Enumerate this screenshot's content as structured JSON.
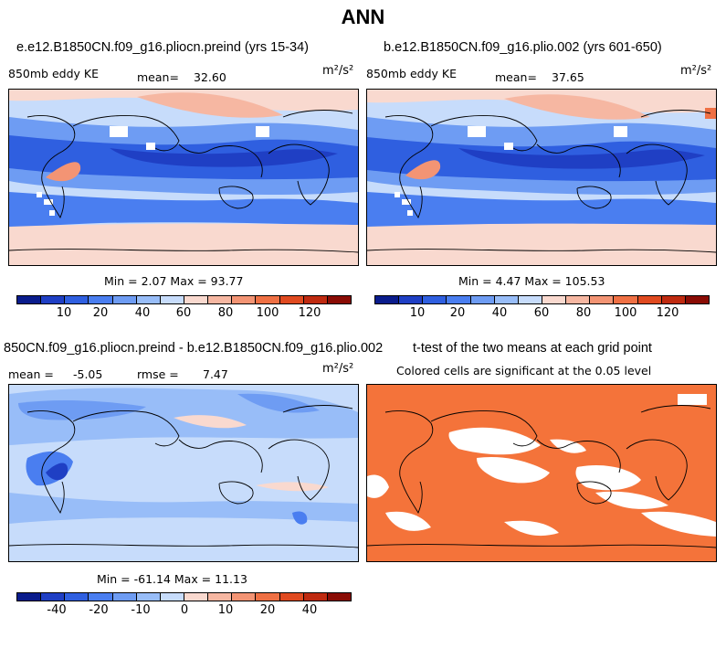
{
  "title": "ANN",
  "panels": [
    {
      "title": "e.e12.B1850CN.f09_g16.pliocn.preind (yrs 15-34)",
      "variable": "850mb eddy KE",
      "mean_label": "mean=",
      "mean_value": "32.60",
      "units": "m²/s²",
      "minmax_text": "Min =   2.07 Max =  93.77",
      "colorbar": {
        "colors": [
          "#0a1c8c",
          "#1f3fc4",
          "#2f5fe0",
          "#4a7ef0",
          "#6e9cf3",
          "#98bdf8",
          "#c7dcfb",
          "#f9d9cf",
          "#f6b7a2",
          "#f39474",
          "#ef7044",
          "#e04a20",
          "#bf2a10",
          "#8a0c05"
        ],
        "ticks": [
          "10",
          "20",
          "40",
          "60",
          "80",
          "100",
          "120"
        ]
      }
    },
    {
      "title": "b.e12.B1850CN.f09_g16.plio.002 (yrs 601-650)",
      "variable": "850mb eddy KE",
      "mean_label": "mean=",
      "mean_value": "37.65",
      "units": "m²/s²",
      "minmax_text": "Min =   4.47 Max = 105.53",
      "colorbar": {
        "colors": [
          "#0a1c8c",
          "#1f3fc4",
          "#2f5fe0",
          "#4a7ef0",
          "#6e9cf3",
          "#98bdf8",
          "#c7dcfb",
          "#f9d9cf",
          "#f6b7a2",
          "#f39474",
          "#ef7044",
          "#e04a20",
          "#bf2a10",
          "#8a0c05"
        ],
        "ticks": [
          "10",
          "20",
          "40",
          "60",
          "80",
          "100",
          "120"
        ]
      }
    },
    {
      "title": "850CN.f09_g16.pliocn.preind - b.e12.B1850CN.f09_g16.plio.002",
      "mean_label": "mean =",
      "mean_value": "-5.05",
      "rmse_label": "rmse =",
      "rmse_value": "7.47",
      "units": "m²/s²",
      "minmax_text": "Min = -61.14 Max =  11.13",
      "colorbar": {
        "colors": [
          "#0a1c8c",
          "#1f3fc4",
          "#2f5fe0",
          "#4a7ef0",
          "#6e9cf3",
          "#98bdf8",
          "#c7dcfb",
          "#f9d9cf",
          "#f6b7a2",
          "#f39474",
          "#ef7044",
          "#e04a20",
          "#bf2a10",
          "#8a0c05"
        ],
        "ticks": [
          "-40",
          "-20",
          "-10",
          "0",
          "10",
          "20",
          "40"
        ]
      }
    },
    {
      "title": "t-test of the two means at each grid point",
      "subtitle": "Colored cells are significant at the 0.05 level",
      "fill_color": "#f4733a"
    }
  ]
}
